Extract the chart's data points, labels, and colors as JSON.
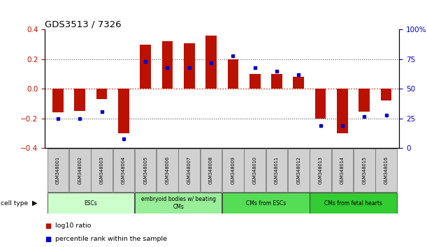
{
  "title": "GDS3513 / 7326",
  "samples": [
    "GSM348001",
    "GSM348002",
    "GSM348003",
    "GSM348004",
    "GSM348005",
    "GSM348006",
    "GSM348007",
    "GSM348008",
    "GSM348009",
    "GSM348010",
    "GSM348011",
    "GSM348012",
    "GSM348013",
    "GSM348014",
    "GSM348015",
    "GSM348016"
  ],
  "log10_ratio": [
    -0.16,
    -0.15,
    -0.07,
    -0.3,
    0.3,
    0.32,
    0.31,
    0.36,
    0.2,
    0.1,
    0.1,
    0.08,
    -0.2,
    -0.3,
    -0.155,
    -0.08
  ],
  "percentile_rank": [
    25,
    25,
    31,
    8,
    73,
    68,
    68,
    72,
    78,
    68,
    65,
    62,
    19,
    19,
    27,
    28
  ],
  "ylim_left": [
    -0.4,
    0.4
  ],
  "ylim_right": [
    0,
    100
  ],
  "yticks_left": [
    -0.4,
    -0.2,
    0.0,
    0.2,
    0.4
  ],
  "yticks_right": [
    0,
    25,
    50,
    75,
    100
  ],
  "bar_color": "#bb1100",
  "dot_color": "#0000cc",
  "cell_type_groups": [
    {
      "label": "ESCs",
      "start": 0,
      "end": 3,
      "color": "#ccffcc"
    },
    {
      "label": "embryoid bodies w/ beating\nCMs",
      "start": 4,
      "end": 7,
      "color": "#99ee99"
    },
    {
      "label": "CMs from ESCs",
      "start": 8,
      "end": 11,
      "color": "#55dd55"
    },
    {
      "label": "CMs from fetal hearts",
      "start": 12,
      "end": 15,
      "color": "#33cc33"
    }
  ],
  "legend_red_label": "log10 ratio",
  "legend_blue_label": "percentile rank within the sample",
  "zero_line_color": "#cc2200",
  "dotted_line_color": "#555555",
  "sample_box_color": "#d0d0d0",
  "bar_width": 0.5
}
